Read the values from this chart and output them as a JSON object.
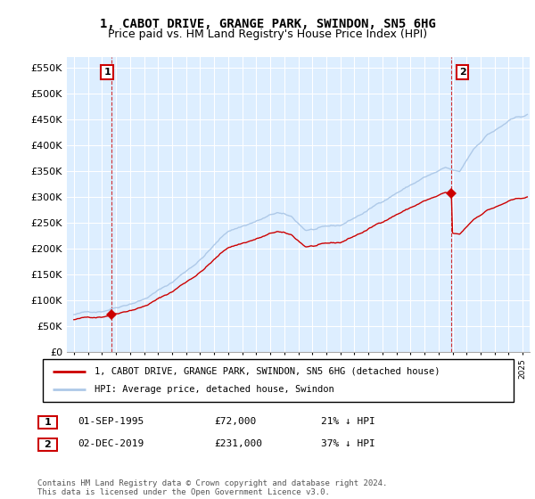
{
  "title": "1, CABOT DRIVE, GRANGE PARK, SWINDON, SN5 6HG",
  "subtitle": "Price paid vs. HM Land Registry's House Price Index (HPI)",
  "ylabel_ticks": [
    "£0",
    "£50K",
    "£100K",
    "£150K",
    "£200K",
    "£250K",
    "£300K",
    "£350K",
    "£400K",
    "£450K",
    "£500K",
    "£550K"
  ],
  "ytick_values": [
    0,
    50000,
    100000,
    150000,
    200000,
    250000,
    300000,
    350000,
    400000,
    450000,
    500000,
    550000
  ],
  "ylim": [
    0,
    570000
  ],
  "xlim_min": 1992.5,
  "xlim_max": 2025.5,
  "sale1_x": 1995.67,
  "sale1_y": 72000,
  "sale2_x": 2019.92,
  "sale2_y": 231000,
  "hpi_color": "#aec9e8",
  "property_color": "#cc0000",
  "chart_bg_color": "#ddeeff",
  "background_color": "#ffffff",
  "legend_label_property": "1, CABOT DRIVE, GRANGE PARK, SWINDON, SN5 6HG (detached house)",
  "legend_label_hpi": "HPI: Average price, detached house, Swindon",
  "table_row1": [
    "1",
    "01-SEP-1995",
    "£72,000",
    "21% ↓ HPI"
  ],
  "table_row2": [
    "2",
    "02-DEC-2019",
    "£231,000",
    "37% ↓ HPI"
  ],
  "footnote": "Contains HM Land Registry data © Crown copyright and database right 2024.\nThis data is licensed under the Open Government Licence v3.0.",
  "title_fontsize": 10,
  "subtitle_fontsize": 9
}
